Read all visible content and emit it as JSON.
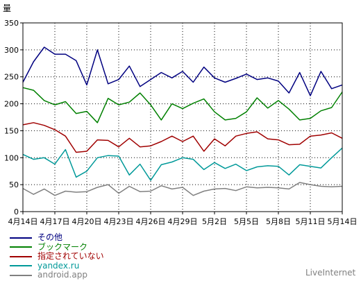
{
  "chart_data": {
    "type": "line",
    "ylabel": "量",
    "xlabel": "",
    "ylim": [
      0,
      350
    ],
    "yticks": [
      0,
      50,
      100,
      150,
      200,
      250,
      300,
      350
    ],
    "grid": true,
    "legend_position": "bottom-left",
    "x": [
      "4月14日",
      "4月15日",
      "4月16日",
      "4月17日",
      "4月18日",
      "4月19日",
      "4月20日",
      "4月21日",
      "4月22日",
      "4月23日",
      "4月24日",
      "4月25日",
      "4月26日",
      "4月27日",
      "4月28日",
      "4月29日",
      "4月30日",
      "5月1日",
      "5月2日",
      "5月3日",
      "5月4日",
      "5月5日",
      "5月6日",
      "5月7日",
      "5月8日",
      "5月9日",
      "5月10日",
      "5月11日",
      "5月12日",
      "5月13日",
      "5月14日"
    ],
    "xtick_labels": [
      "4月14日",
      "4月17日",
      "4月20日",
      "4月23日",
      "4月26日",
      "4月29日",
      "5月2日",
      "5月5日",
      "5月8日",
      "5月11日",
      "5月14日"
    ],
    "xtick_positions": [
      0,
      3,
      6,
      9,
      12,
      15,
      18,
      21,
      24,
      27,
      30
    ],
    "series": [
      {
        "name": "その他",
        "color": "#000080",
        "values": [
          240,
          278,
          305,
          292,
          292,
          280,
          235,
          300,
          237,
          245,
          270,
          232,
          245,
          258,
          248,
          260,
          240,
          268,
          248,
          240,
          247,
          255,
          245,
          248,
          242,
          220,
          258,
          215,
          260,
          228,
          235
        ]
      },
      {
        "name": "ブックマーク",
        "color": "#008000",
        "values": [
          230,
          225,
          206,
          198,
          204,
          182,
          186,
          165,
          210,
          198,
          203,
          220,
          198,
          170,
          200,
          191,
          201,
          209,
          185,
          170,
          173,
          185,
          211,
          192,
          206,
          190,
          170,
          173,
          187,
          193,
          222
        ]
      },
      {
        "name": "指定されていない",
        "color": "#a00000",
        "values": [
          161,
          165,
          160,
          152,
          140,
          110,
          112,
          133,
          132,
          120,
          136,
          120,
          122,
          130,
          140,
          130,
          140,
          112,
          135,
          122,
          140,
          145,
          148,
          135,
          133,
          124,
          125,
          140,
          142,
          146,
          136
        ]
      },
      {
        "name": "yandex.ru",
        "color": "#009999",
        "values": [
          106,
          97,
          100,
          88,
          115,
          64,
          75,
          100,
          104,
          103,
          68,
          88,
          58,
          87,
          92,
          100,
          97,
          78,
          91,
          80,
          88,
          76,
          83,
          85,
          84,
          68,
          87,
          84,
          81,
          100,
          118
        ]
      },
      {
        "name": "android.app",
        "color": "#808080",
        "values": [
          43,
          32,
          42,
          30,
          38,
          36,
          37,
          45,
          50,
          34,
          47,
          37,
          38,
          48,
          42,
          45,
          30,
          38,
          42,
          43,
          39,
          46,
          44,
          45,
          44,
          42,
          54,
          50,
          47,
          46,
          47
        ]
      }
    ]
  },
  "brand": "LiveInternet"
}
